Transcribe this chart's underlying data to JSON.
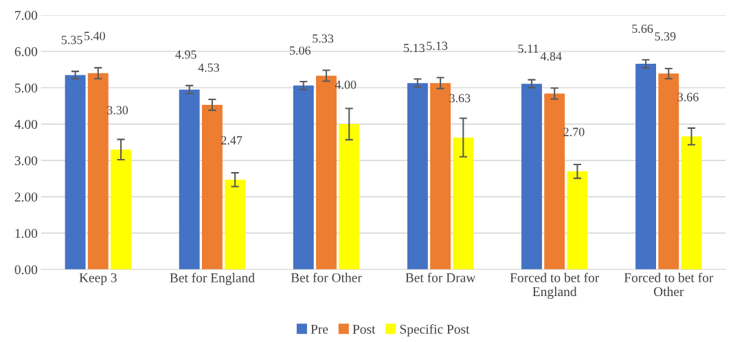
{
  "chart_data": {
    "type": "bar",
    "categories": [
      "Keep 3",
      "Bet for England",
      "Bet for Other",
      "Bet for Draw",
      "Forced to bet for England",
      "Forced to bet for Other"
    ],
    "series": [
      {
        "name": "Pre",
        "color": "#4472c4",
        "values": [
          5.35,
          4.95,
          5.06,
          5.13,
          5.11,
          5.66
        ],
        "errors": [
          0.1,
          0.11,
          0.11,
          0.11,
          0.11,
          0.11
        ],
        "value_labels": [
          "5.35",
          "4.95",
          "5.06",
          "5.13",
          "5.11",
          "5.66"
        ]
      },
      {
        "name": "Post",
        "color": "#ed7d31",
        "values": [
          5.4,
          4.53,
          5.33,
          5.13,
          4.84,
          5.39
        ],
        "errors": [
          0.15,
          0.15,
          0.15,
          0.15,
          0.15,
          0.14
        ],
        "value_labels": [
          "5.40",
          "4.53",
          "5.33",
          "5.13",
          "4.84",
          "5.39"
        ]
      },
      {
        "name": "Specific Post",
        "color": "#ffff00",
        "values": [
          3.3,
          2.47,
          4.0,
          3.63,
          2.7,
          3.66
        ],
        "errors": [
          0.28,
          0.19,
          0.43,
          0.53,
          0.19,
          0.23
        ],
        "value_labels": [
          "3.30",
          "2.47",
          "4.00",
          "3.63",
          "2.70",
          "3.66"
        ]
      }
    ],
    "ylim": [
      0,
      7
    ],
    "yticks": [
      {
        "value": 0,
        "label": "0.00"
      },
      {
        "value": 1,
        "label": "1.00"
      },
      {
        "value": 2,
        "label": "2.00"
      },
      {
        "value": 3,
        "label": "3.00"
      },
      {
        "value": 4,
        "label": "4.00"
      },
      {
        "value": 5,
        "label": "5.00"
      },
      {
        "value": 6,
        "label": "6.00"
      },
      {
        "value": 7,
        "label": "7.00"
      }
    ],
    "grid": "y",
    "legend": "bottom"
  }
}
